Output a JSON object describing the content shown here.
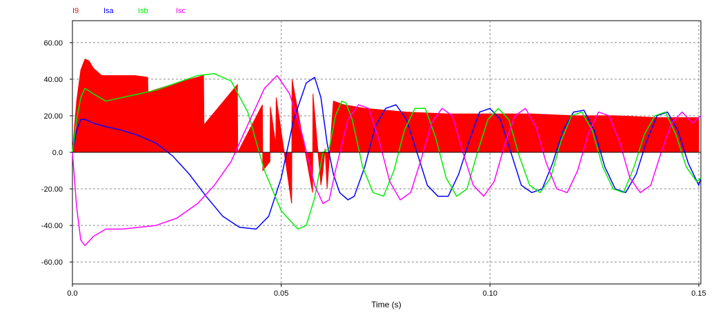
{
  "chart_data": {
    "type": "line",
    "xlabel": "Time (s)",
    "ylabel": "",
    "xlim": [
      0,
      0.1505
    ],
    "ylim": [
      -72,
      72
    ],
    "grid": true,
    "legend_placement": "top-left",
    "x_ticks": [
      {
        "value": 0.0,
        "label": "0.0"
      },
      {
        "value": 0.05,
        "label": "0.05"
      },
      {
        "value": 0.1,
        "label": "0.10"
      },
      {
        "value": 0.15,
        "label": "0.15"
      }
    ],
    "y_ticks": [
      {
        "value": 60,
        "label": "60.00"
      },
      {
        "value": 40,
        "label": "40.00"
      },
      {
        "value": 20,
        "label": "20.00"
      },
      {
        "value": 0,
        "label": "0.0"
      },
      {
        "value": -20,
        "label": "-20.00"
      },
      {
        "value": -40,
        "label": "-40.00"
      },
      {
        "value": -60,
        "label": "-60.00"
      }
    ],
    "series": [
      {
        "name": "I9",
        "color": "#ff0000",
        "style": "filled",
        "x": [
          0,
          0.001,
          0.002,
          0.003,
          0.004,
          0.005,
          0.007,
          0.01,
          0.015,
          0.018,
          0.0181,
          0.025,
          0.0314,
          0.0315,
          0.0395,
          0.0396,
          0.0455,
          0.0456,
          0.0473,
          0.0474,
          0.0487,
          0.0488,
          0.0525,
          0.0526,
          0.0575,
          0.0576,
          0.0595,
          0.06,
          0.0605,
          0.061,
          0.0625,
          0.065,
          0.07,
          0.08,
          0.09,
          0.1,
          0.11,
          0.12,
          0.13,
          0.14,
          0.15
        ],
        "y": [
          0,
          28,
          45,
          51,
          50,
          46,
          42,
          42,
          42,
          41,
          33,
          38,
          42,
          15,
          37,
          0,
          26,
          -10,
          -5,
          25,
          4,
          30,
          -28,
          40,
          -22,
          32,
          -18,
          -10,
          2,
          -20,
          28,
          26,
          24,
          22,
          21,
          21,
          21,
          20,
          20,
          19,
          19
        ]
      },
      {
        "name": "Isa",
        "color": "#0000ff",
        "x": [
          0,
          0.001,
          0.002,
          0.003,
          0.005,
          0.008,
          0.012,
          0.016,
          0.02,
          0.024,
          0.028,
          0.032,
          0.036,
          0.04,
          0.044,
          0.047,
          0.05,
          0.053,
          0.056,
          0.058,
          0.0595,
          0.061,
          0.0625,
          0.064,
          0.066,
          0.0675,
          0.07,
          0.0725,
          0.075,
          0.0775,
          0.08,
          0.0825,
          0.085,
          0.0875,
          0.09,
          0.0925,
          0.095,
          0.0975,
          0.1,
          0.1025,
          0.105,
          0.1075,
          0.11,
          0.1125,
          0.115,
          0.1175,
          0.12,
          0.1225,
          0.125,
          0.1275,
          0.13,
          0.1325,
          0.135,
          0.1375,
          0.14,
          0.1425,
          0.145,
          0.1475,
          0.15,
          0.1505
        ],
        "y": [
          0,
          12,
          18,
          18,
          16,
          14,
          12,
          9,
          5,
          -2,
          -12,
          -24,
          -35,
          -41,
          -42,
          -35,
          -14,
          18,
          38,
          41,
          30,
          5,
          -12,
          -22,
          -26,
          -24,
          -8,
          14,
          24,
          26,
          18,
          0,
          -18,
          -24,
          -24,
          -12,
          6,
          22,
          24,
          18,
          0,
          -18,
          -22,
          -20,
          -6,
          12,
          22,
          23,
          12,
          -8,
          -20,
          -22,
          -12,
          6,
          20,
          22,
          12,
          -6,
          -18,
          -14
        ]
      },
      {
        "name": "Isb",
        "color": "#00ee00",
        "x": [
          0,
          0.001,
          0.002,
          0.003,
          0.005,
          0.008,
          0.012,
          0.016,
          0.02,
          0.025,
          0.03,
          0.034,
          0.038,
          0.042,
          0.046,
          0.05,
          0.054,
          0.056,
          0.058,
          0.06,
          0.0615,
          0.063,
          0.0645,
          0.0655,
          0.067,
          0.0695,
          0.072,
          0.0745,
          0.077,
          0.0795,
          0.082,
          0.0845,
          0.087,
          0.0895,
          0.092,
          0.0945,
          0.097,
          0.0995,
          0.102,
          0.1045,
          0.107,
          0.1095,
          0.112,
          0.1145,
          0.117,
          0.1195,
          0.122,
          0.1245,
          0.127,
          0.1295,
          0.132,
          0.1345,
          0.137,
          0.1395,
          0.142,
          0.1445,
          0.147,
          0.1495,
          0.1505
        ],
        "y": [
          0,
          18,
          30,
          35,
          32,
          28,
          30,
          32,
          34,
          38,
          42,
          43,
          39,
          22,
          -10,
          -32,
          -42,
          -40,
          -25,
          0,
          2,
          20,
          28,
          27,
          18,
          -8,
          -22,
          -24,
          -10,
          12,
          24,
          24,
          8,
          -14,
          -24,
          -20,
          0,
          18,
          24,
          18,
          -2,
          -18,
          -22,
          -14,
          6,
          20,
          22,
          12,
          -8,
          -20,
          -22,
          -8,
          10,
          20,
          22,
          10,
          -8,
          -16,
          -14
        ]
      },
      {
        "name": "Isc",
        "color": "#ff00ff",
        "x": [
          0,
          0.001,
          0.002,
          0.003,
          0.005,
          0.008,
          0.012,
          0.016,
          0.02,
          0.025,
          0.03,
          0.034,
          0.038,
          0.042,
          0.046,
          0.049,
          0.052,
          0.055,
          0.058,
          0.06,
          0.0615,
          0.063,
          0.066,
          0.0685,
          0.071,
          0.0735,
          0.076,
          0.0785,
          0.081,
          0.0835,
          0.086,
          0.0885,
          0.091,
          0.0935,
          0.096,
          0.0985,
          0.101,
          0.1035,
          0.106,
          0.1085,
          0.111,
          0.1135,
          0.116,
          0.1185,
          0.121,
          0.1235,
          0.126,
          0.1285,
          0.131,
          0.1335,
          0.136,
          0.1385,
          0.141,
          0.1435,
          0.146,
          0.1485,
          0.1505
        ],
        "y": [
          0,
          -30,
          -48,
          -51,
          -46,
          -42,
          -42,
          -41,
          -40,
          -36,
          -28,
          -18,
          -5,
          15,
          35,
          42,
          32,
          10,
          -18,
          -28,
          -26,
          -10,
          18,
          26,
          24,
          6,
          -16,
          -26,
          -22,
          -4,
          16,
          24,
          20,
          0,
          -18,
          -24,
          -16,
          4,
          20,
          24,
          14,
          -6,
          -20,
          -22,
          -10,
          10,
          22,
          20,
          6,
          -14,
          -22,
          -18,
          0,
          16,
          22,
          16,
          20
        ]
      }
    ]
  }
}
